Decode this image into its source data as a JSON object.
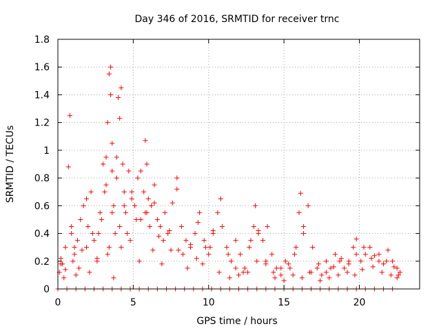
{
  "chart_data": {
    "type": "scatter",
    "title": "Day 346 of 2016, SRMTID for receiver trnc",
    "xlabel": "GPS time / hours",
    "ylabel": "SRMTID / TECUs",
    "xlim": [
      0,
      24
    ],
    "ylim": [
      0,
      1.8
    ],
    "xticks": [
      "0",
      "5",
      "10",
      "15",
      "20"
    ],
    "yticks": [
      "0",
      "0.2",
      "0.4",
      "0.6",
      "0.8",
      "1",
      "1.2",
      "1.4",
      "1.6",
      "1.8"
    ],
    "grid": true,
    "marker": "+",
    "color": "#ff0000",
    "series": [
      {
        "name": "SRMTID",
        "x": [
          0.1,
          0.2,
          0.3,
          0.5,
          0.7,
          0.8,
          0.9,
          1.0,
          1.1,
          1.3,
          1.5,
          1.7,
          1.9,
          2.0,
          2.2,
          2.4,
          2.6,
          2.8,
          3.0,
          3.1,
          3.2,
          3.3,
          3.4,
          3.5,
          3.5,
          3.6,
          3.6,
          3.7,
          3.8,
          3.9,
          4.0,
          4.1,
          4.2,
          4.3,
          4.4,
          4.5,
          4.7,
          4.9,
          5.1,
          5.3,
          5.5,
          5.7,
          5.8,
          5.9,
          6.0,
          6.2,
          6.4,
          6.6,
          6.8,
          7.0,
          7.3,
          7.6,
          7.9,
          8.2,
          8.5,
          8.8,
          9.1,
          9.4,
          9.7,
          10.0,
          10.3,
          10.6,
          10.9,
          11.2,
          11.5,
          11.8,
          12.1,
          12.4,
          12.7,
          13.0,
          13.1,
          13.3,
          13.6,
          13.9,
          14.2,
          14.5,
          14.8,
          15.1,
          15.4,
          15.7,
          16.0,
          16.1,
          16.3,
          16.6,
          16.9,
          17.2,
          17.5,
          17.8,
          18.1,
          18.4,
          18.7,
          19.0,
          19.3,
          19.6,
          19.8,
          20.1,
          20.4,
          20.7,
          21.0,
          21.3,
          21.6,
          21.9,
          22.2,
          22.5,
          22.7,
          0.2,
          0.5,
          0.9,
          1.1,
          1.4,
          1.6,
          1.9,
          2.3,
          2.6,
          2.9,
          3.2,
          3.4,
          3.6,
          3.9,
          4.1,
          4.4,
          4.6,
          4.9,
          5.2,
          5.5,
          5.8,
          6.1,
          6.4,
          6.7,
          7.1,
          7.5,
          7.9,
          8.3,
          8.8,
          9.3,
          9.8,
          10.3,
          10.8,
          11.3,
          11.8,
          12.3,
          12.8,
          13.3,
          13.8,
          14.3,
          14.8,
          15.3,
          15.8,
          16.3,
          16.8,
          17.3,
          17.8,
          18.3,
          18.8,
          19.3,
          19.8,
          20.3,
          20.8,
          21.3,
          21.8,
          22.3,
          22.6,
          0.4,
          1.2,
          2.1,
          2.7,
          3.3,
          3.7,
          4.2,
          4.8,
          5.4,
          5.9,
          6.3,
          6.9,
          7.4,
          8.0,
          8.6,
          9.2,
          9.6,
          10.1,
          10.7,
          11.4,
          12.0,
          12.6,
          13.2,
          13.8,
          14.4,
          15.0,
          15.6,
          16.2,
          16.7,
          17.4,
          18.0,
          18.6,
          19.2,
          19.7,
          20.2,
          20.9,
          21.5,
          22.1,
          22.5,
          0.0,
          0.6,
          1.2,
          1.8,
          2.4,
          3.0,
          3.6,
          4.2,
          4.8,
          5.4,
          6.0,
          6.6,
          7.2,
          7.8,
          8.4,
          9.0,
          9.6,
          10.2,
          10.8,
          11.4,
          12.0,
          12.6,
          13.2,
          13.8,
          14.4,
          15.0,
          15.6,
          16.2,
          16.8,
          17.4,
          18.0,
          18.6,
          19.2,
          19.8,
          20.4,
          21.0,
          21.6,
          22.2
        ],
        "y": [
          0.12,
          0.22,
          0.18,
          0.3,
          0.88,
          1.25,
          0.4,
          0.2,
          0.25,
          0.35,
          0.5,
          0.6,
          0.3,
          0.45,
          0.7,
          0.35,
          0.2,
          0.55,
          0.9,
          0.7,
          0.95,
          1.2,
          1.55,
          1.6,
          1.4,
          1.05,
          0.85,
          0.6,
          0.4,
          0.8,
          1.38,
          1.23,
          1.45,
          0.9,
          0.7,
          0.55,
          0.85,
          0.65,
          0.6,
          0.8,
          0.5,
          0.7,
          1.07,
          0.9,
          0.65,
          0.6,
          0.75,
          0.5,
          0.45,
          0.35,
          0.4,
          0.62,
          0.8,
          0.45,
          0.35,
          0.3,
          0.4,
          0.55,
          0.35,
          0.25,
          0.4,
          0.55,
          0.45,
          0.3,
          0.2,
          0.35,
          0.25,
          0.15,
          0.3,
          0.45,
          0.6,
          0.4,
          0.35,
          0.45,
          0.25,
          0.15,
          0.1,
          0.2,
          0.15,
          0.25,
          0.55,
          0.69,
          0.4,
          0.6,
          0.3,
          0.15,
          0.1,
          0.2,
          0.15,
          0.25,
          0.2,
          0.15,
          0.2,
          0.3,
          0.36,
          0.2,
          0.25,
          0.3,
          0.24,
          0.2,
          0.18,
          0.28,
          0.2,
          0.15,
          0.12,
          0.18,
          0.14,
          0.45,
          0.3,
          0.15,
          0.28,
          0.65,
          0.4,
          0.22,
          0.5,
          0.75,
          0.3,
          0.55,
          0.95,
          0.45,
          0.6,
          0.4,
          0.7,
          0.5,
          0.85,
          0.55,
          0.45,
          0.62,
          0.38,
          0.55,
          0.28,
          0.72,
          0.25,
          0.32,
          0.48,
          0.3,
          0.42,
          0.65,
          0.25,
          0.15,
          0.12,
          0.35,
          0.42,
          0.2,
          0.12,
          0.15,
          0.18,
          0.3,
          0.45,
          0.12,
          0.18,
          0.12,
          0.16,
          0.22,
          0.18,
          0.25,
          0.3,
          0.22,
          0.25,
          0.2,
          0.16,
          0.1,
          0.08,
          0.1,
          0.12,
          0.4,
          0.25,
          0.08,
          0.3,
          0.35,
          0.2,
          0.55,
          0.28,
          0.18,
          0.42,
          0.28,
          0.15,
          0.22,
          0.18,
          0.3,
          0.12,
          0.08,
          0.1,
          0.12,
          0.2,
          0.18,
          0.08,
          0.06,
          0.1,
          0.08,
          0.12,
          0.06,
          0.08,
          0.1,
          0.12,
          0.1,
          0.14,
          0.16,
          0.12,
          0.1,
          0.08,
          0.0,
          0.0,
          0.0,
          0.0,
          0.0,
          0.0,
          0.0,
          0.0,
          0.0,
          0.0,
          0.0,
          0.0,
          0.0,
          0.0,
          0.0,
          0.0,
          0.0,
          0.0,
          0.0,
          0.0,
          0.0,
          0.0,
          0.0,
          0.0,
          0.0,
          0.0,
          0.0,
          0.0,
          0.0,
          0.0,
          0.0,
          0.0,
          0.0,
          0.0,
          0.0,
          0.0,
          0.0,
          0.0
        ]
      }
    ]
  }
}
